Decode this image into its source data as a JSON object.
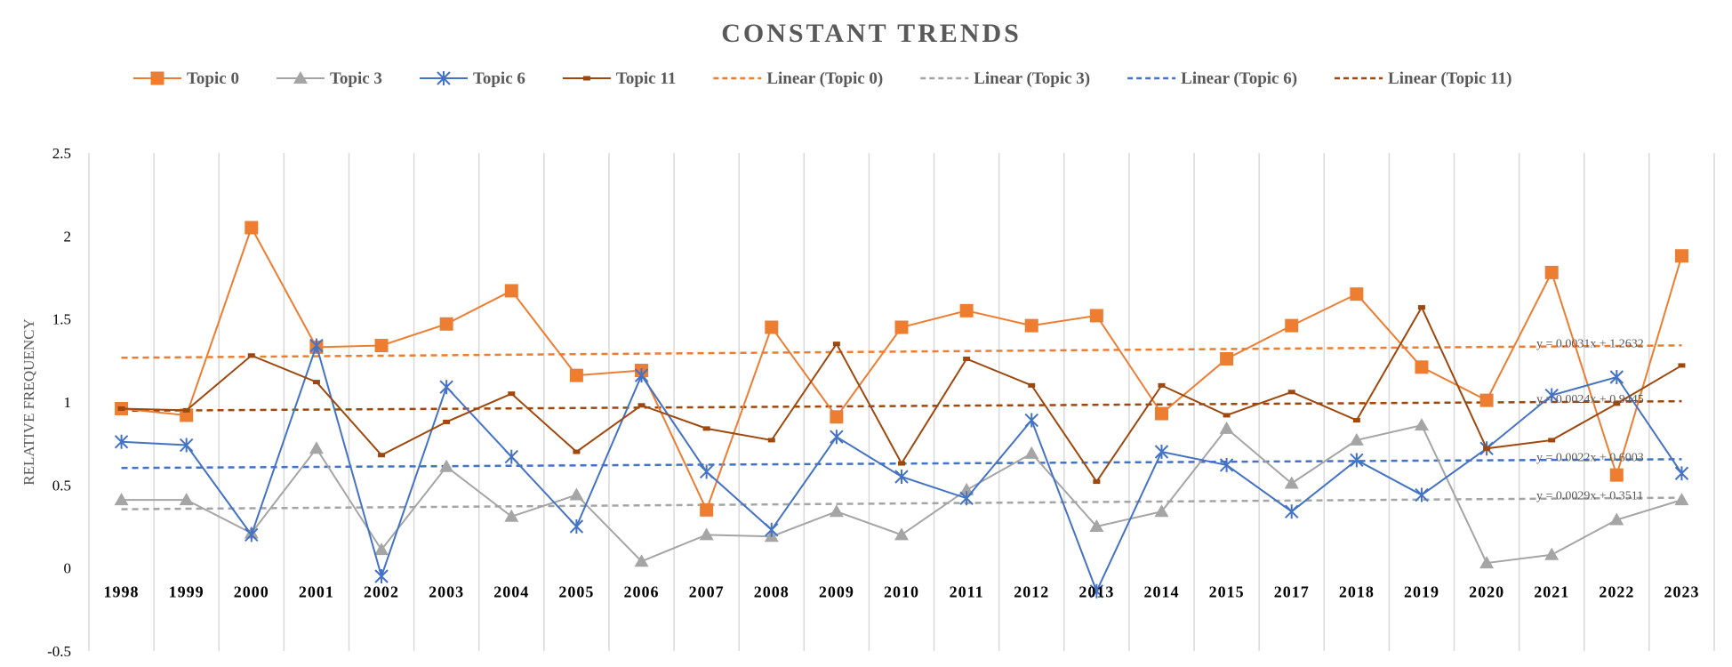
{
  "chart_data": {
    "type": "line",
    "title": "CONSTANT TRENDS",
    "ylabel": "RELATIVE FREQUENCY",
    "xlabel": "",
    "ylim": [
      -0.5,
      2.5
    ],
    "yticks": [
      "-0.5",
      "0",
      "0.5",
      "1",
      "1.5",
      "2",
      "2.5"
    ],
    "grid": "vertical",
    "legend_position": "top",
    "categories": [
      "1998",
      "1999",
      "2000",
      "2001",
      "2002",
      "2003",
      "2004",
      "2005",
      "2006",
      "2007",
      "2008",
      "2009",
      "2010",
      "2011",
      "2012",
      "2013",
      "2014",
      "2015",
      "2017",
      "2018",
      "2019",
      "2020",
      "2021",
      "2022",
      "2023"
    ],
    "series": [
      {
        "name": "Topic 0",
        "color": "#ED7D31",
        "marker": "square",
        "values": [
          0.96,
          0.92,
          2.05,
          1.33,
          1.34,
          1.47,
          1.67,
          1.16,
          1.19,
          0.35,
          1.45,
          0.91,
          1.45,
          1.55,
          1.46,
          1.52,
          0.93,
          1.26,
          1.46,
          1.65,
          1.21,
          1.01,
          1.78,
          0.56,
          1.88
        ]
      },
      {
        "name": "Topic 3",
        "color": "#A5A5A5",
        "marker": "triangle",
        "values": [
          0.41,
          0.41,
          0.21,
          0.72,
          0.11,
          0.61,
          0.31,
          0.44,
          0.04,
          0.2,
          0.19,
          0.34,
          0.2,
          0.47,
          0.69,
          0.25,
          0.34,
          0.84,
          0.51,
          0.77,
          0.86,
          0.03,
          0.08,
          0.29,
          0.41
        ]
      },
      {
        "name": "Topic 6",
        "color": "#4472C4",
        "marker": "star",
        "values": [
          0.76,
          0.74,
          0.2,
          1.34,
          -0.05,
          1.09,
          0.67,
          0.25,
          1.16,
          0.58,
          0.23,
          0.79,
          0.55,
          0.42,
          0.89,
          -0.14,
          0.7,
          0.62,
          0.34,
          0.65,
          0.44,
          0.72,
          1.04,
          1.15,
          0.57
        ]
      },
      {
        "name": "Topic 11",
        "color": "#9E480E",
        "marker": "dash",
        "values": [
          0.96,
          0.95,
          1.28,
          1.12,
          0.68,
          0.88,
          1.05,
          0.7,
          0.98,
          0.84,
          0.77,
          1.35,
          0.63,
          1.26,
          1.1,
          0.52,
          1.1,
          0.92,
          1.06,
          0.89,
          1.57,
          0.72,
          0.77,
          0.99,
          1.22
        ]
      }
    ],
    "trendlines": [
      {
        "name": "Linear (Topic 0)",
        "color": "#ED7D31",
        "equation": "y = 0.0031x + 1.2632",
        "slope": 0.0031,
        "intercept": 1.2632
      },
      {
        "name": "Linear (Topic 3)",
        "color": "#A5A5A5",
        "equation": "y = 0.0029x + 0.3511",
        "slope": 0.0029,
        "intercept": 0.3511
      },
      {
        "name": "Linear (Topic 6)",
        "color": "#4472C4",
        "equation": "y = 0.0022x + 0.6003",
        "slope": 0.0022,
        "intercept": 0.6003
      },
      {
        "name": "Linear (Topic 11)",
        "color": "#9E480E",
        "equation": "y = 0.0024x + 0.9445",
        "slope": 0.0024,
        "intercept": 0.9445
      }
    ]
  }
}
